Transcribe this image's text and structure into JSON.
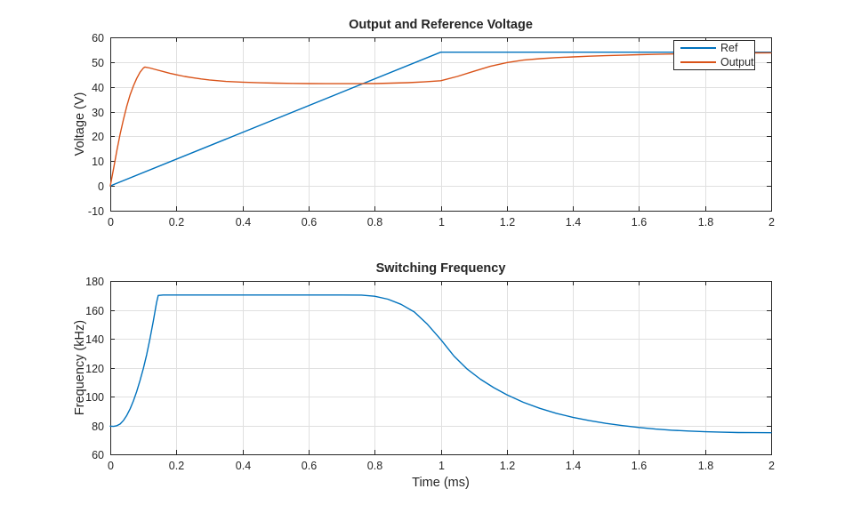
{
  "figure": {
    "background": "#ffffff",
    "axis_color": "#262626",
    "grid_color": "#e0e0e0",
    "line_blue": "#0072BD",
    "line_orange": "#D95319"
  },
  "chart_data": [
    {
      "type": "line",
      "title": "Output and Reference Voltage",
      "xlabel": "",
      "ylabel": "Voltage (V)",
      "xlim": [
        0,
        2
      ],
      "ylim": [
        -10,
        60
      ],
      "grid": true,
      "xticks": [
        0,
        0.2,
        0.4,
        0.6,
        0.8,
        1,
        1.2,
        1.4,
        1.6,
        1.8,
        2
      ],
      "xtick_labels": [
        "0",
        "0.2",
        "0.4",
        "0.6",
        "0.8",
        "1",
        "1.2",
        "1.4",
        "1.6",
        "1.8",
        "2"
      ],
      "yticks": [
        -10,
        0,
        10,
        20,
        30,
        40,
        50,
        60
      ],
      "ytick_labels": [
        "-10",
        "0",
        "10",
        "20",
        "30",
        "40",
        "50",
        "60"
      ],
      "legend": {
        "position": "northeast",
        "entries": [
          {
            "label": "Ref",
            "color": "#0072BD"
          },
          {
            "label": "Output",
            "color": "#D95319"
          }
        ]
      },
      "series": [
        {
          "name": "Ref",
          "color": "#0072BD",
          "points": [
            [
              0,
              0
            ],
            [
              1,
              54
            ],
            [
              2,
              54
            ]
          ]
        },
        {
          "name": "Output",
          "color": "#D95319",
          "points": [
            [
              0,
              0
            ],
            [
              0.01,
              7
            ],
            [
              0.02,
              14.3
            ],
            [
              0.03,
              21
            ],
            [
              0.04,
              27
            ],
            [
              0.05,
              32.3
            ],
            [
              0.06,
              36.8
            ],
            [
              0.07,
              40.4
            ],
            [
              0.08,
              43.4
            ],
            [
              0.09,
              45.9
            ],
            [
              0.1,
              47.6
            ],
            [
              0.105,
              48
            ],
            [
              0.12,
              47.6
            ],
            [
              0.14,
              46.9
            ],
            [
              0.16,
              46.2
            ],
            [
              0.18,
              45.5
            ],
            [
              0.2,
              44.9
            ],
            [
              0.225,
              44.2
            ],
            [
              0.25,
              43.7
            ],
            [
              0.275,
              43.2
            ],
            [
              0.3,
              42.8
            ],
            [
              0.35,
              42.2
            ],
            [
              0.4,
              41.9
            ],
            [
              0.45,
              41.65
            ],
            [
              0.5,
              41.5
            ],
            [
              0.55,
              41.4
            ],
            [
              0.6,
              41.35
            ],
            [
              0.65,
              41.3
            ],
            [
              0.7,
              41.3
            ],
            [
              0.75,
              41.3
            ],
            [
              0.8,
              41.35
            ],
            [
              0.85,
              41.5
            ],
            [
              0.9,
              41.7
            ],
            [
              0.95,
              42
            ],
            [
              1,
              42.5
            ],
            [
              1.05,
              44.2
            ],
            [
              1.1,
              46.3
            ],
            [
              1.15,
              48.3
            ],
            [
              1.2,
              49.8
            ],
            [
              1.25,
              50.8
            ],
            [
              1.3,
              51.4
            ],
            [
              1.35,
              51.8
            ],
            [
              1.4,
              52.1
            ],
            [
              1.45,
              52.4
            ],
            [
              1.5,
              52.6
            ],
            [
              1.55,
              52.8
            ],
            [
              1.6,
              53
            ],
            [
              1.65,
              53.15
            ],
            [
              1.7,
              53.3
            ],
            [
              1.75,
              53.4
            ],
            [
              1.8,
              53.5
            ],
            [
              1.85,
              53.6
            ],
            [
              1.9,
              53.65
            ],
            [
              1.95,
              53.7
            ],
            [
              2,
              53.75
            ]
          ]
        }
      ]
    },
    {
      "type": "line",
      "title": "Switching Frequency",
      "xlabel": "Time (ms)",
      "ylabel": "Frequency (kHz)",
      "xlim": [
        0,
        2
      ],
      "ylim": [
        60,
        180
      ],
      "grid": true,
      "xticks": [
        0,
        0.2,
        0.4,
        0.6,
        0.8,
        1,
        1.2,
        1.4,
        1.6,
        1.8,
        2
      ],
      "xtick_labels": [
        "0",
        "0.2",
        "0.4",
        "0.6",
        "0.8",
        "1",
        "1.2",
        "1.4",
        "1.6",
        "1.8",
        "2"
      ],
      "yticks": [
        60,
        80,
        100,
        120,
        140,
        160,
        180
      ],
      "ytick_labels": [
        "60",
        "80",
        "100",
        "120",
        "140",
        "160",
        "180"
      ],
      "series": [
        {
          "name": "Frequency",
          "color": "#0072BD",
          "points": [
            [
              0,
              79.5
            ],
            [
              0.01,
              79.3
            ],
            [
              0.02,
              79.8
            ],
            [
              0.03,
              81
            ],
            [
              0.04,
              83.5
            ],
            [
              0.05,
              87
            ],
            [
              0.06,
              91.5
            ],
            [
              0.07,
              97
            ],
            [
              0.08,
              103.5
            ],
            [
              0.09,
              111
            ],
            [
              0.1,
              119.5
            ],
            [
              0.11,
              129
            ],
            [
              0.12,
              140
            ],
            [
              0.13,
              152
            ],
            [
              0.14,
              165
            ],
            [
              0.145,
              170
            ],
            [
              0.16,
              170.3
            ],
            [
              0.3,
              170.3
            ],
            [
              0.5,
              170.3
            ],
            [
              0.7,
              170.3
            ],
            [
              0.76,
              170.2
            ],
            [
              0.8,
              169.4
            ],
            [
              0.84,
              167.4
            ],
            [
              0.88,
              163.8
            ],
            [
              0.92,
              158.5
            ],
            [
              0.96,
              150
            ],
            [
              1,
              139.5
            ],
            [
              1.04,
              128
            ],
            [
              1.08,
              119
            ],
            [
              1.12,
              112
            ],
            [
              1.16,
              106.2
            ],
            [
              1.2,
              101.2
            ],
            [
              1.25,
              96
            ],
            [
              1.3,
              91.8
            ],
            [
              1.35,
              88.4
            ],
            [
              1.4,
              85.6
            ],
            [
              1.45,
              83.3
            ],
            [
              1.5,
              81.4
            ],
            [
              1.55,
              79.9
            ],
            [
              1.6,
              78.6
            ],
            [
              1.65,
              77.5
            ],
            [
              1.7,
              76.7
            ],
            [
              1.75,
              76.1
            ],
            [
              1.8,
              75.6
            ],
            [
              1.85,
              75.3
            ],
            [
              1.9,
              75.1
            ],
            [
              1.95,
              75
            ],
            [
              2,
              74.95
            ]
          ]
        }
      ]
    }
  ]
}
